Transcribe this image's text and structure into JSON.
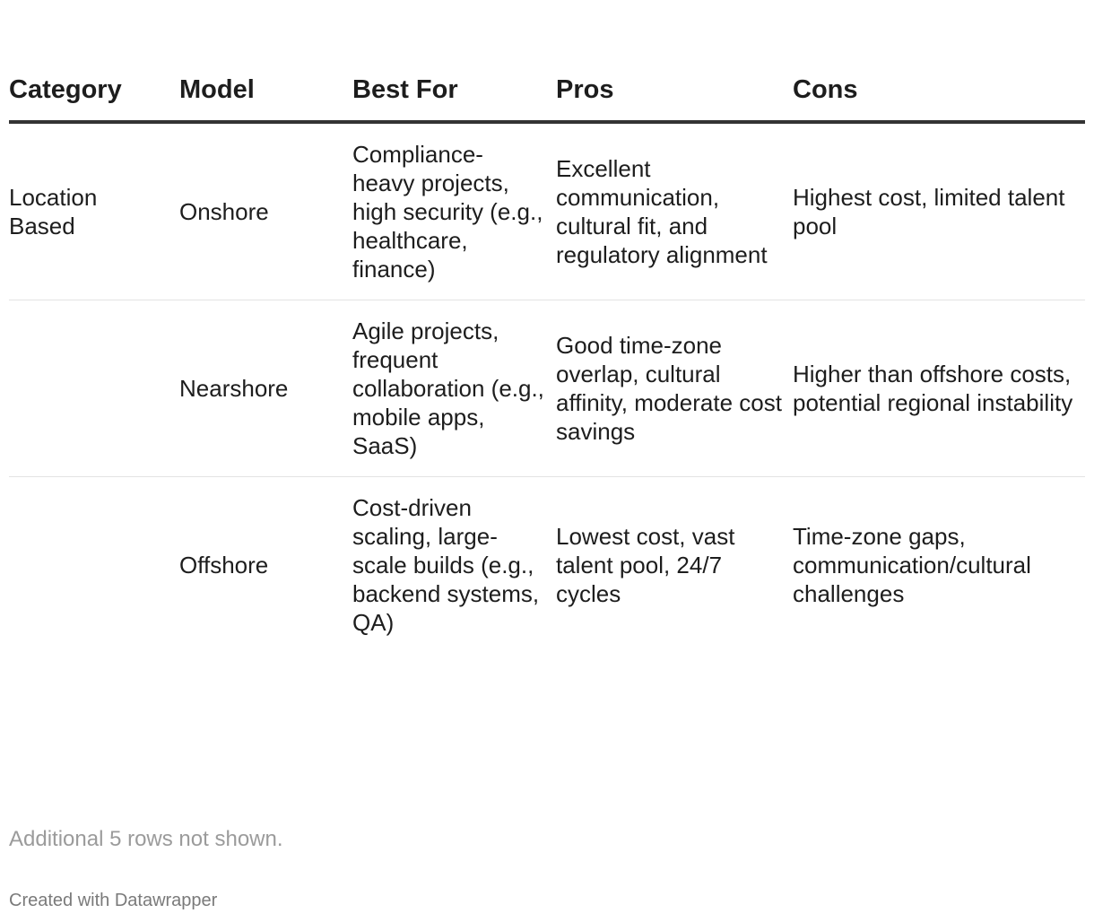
{
  "table": {
    "headers": [
      "Category",
      "Model",
      "Best For",
      "Pros",
      "Cons"
    ],
    "rows": [
      {
        "category": "Location Based",
        "model": "Onshore",
        "best_for": "Compliance-heavy projects, high security (e.g., healthcare, finance)",
        "pros": "Excellent communication, cultural fit, and regulatory alignment",
        "cons": "Highest cost, limited talent pool"
      },
      {
        "category": "",
        "model": "Nearshore",
        "best_for": "Agile projects, frequent collaboration (e.g., mobile apps, SaaS)",
        "pros": "Good time-zone overlap, cultural affinity, moderate cost savings",
        "cons": "Higher than offshore costs, potential regional instability"
      },
      {
        "category": "",
        "model": "Offshore",
        "best_for": "Cost-driven scaling, large-scale builds (e.g., backend systems, QA)",
        "pros": "Lowest cost, vast talent pool, 24/7 cycles",
        "cons": "Time-zone gaps, communication/cultural challenges"
      }
    ]
  },
  "notes": "Additional 5 rows not shown.",
  "credit": "Created with Datawrapper",
  "colors": {
    "text": "#1d1d1d",
    "header_rule": "#333333",
    "row_rule": "#e3e3e3",
    "notes": "#9b9b9b",
    "credit": "#7a7a7a"
  }
}
